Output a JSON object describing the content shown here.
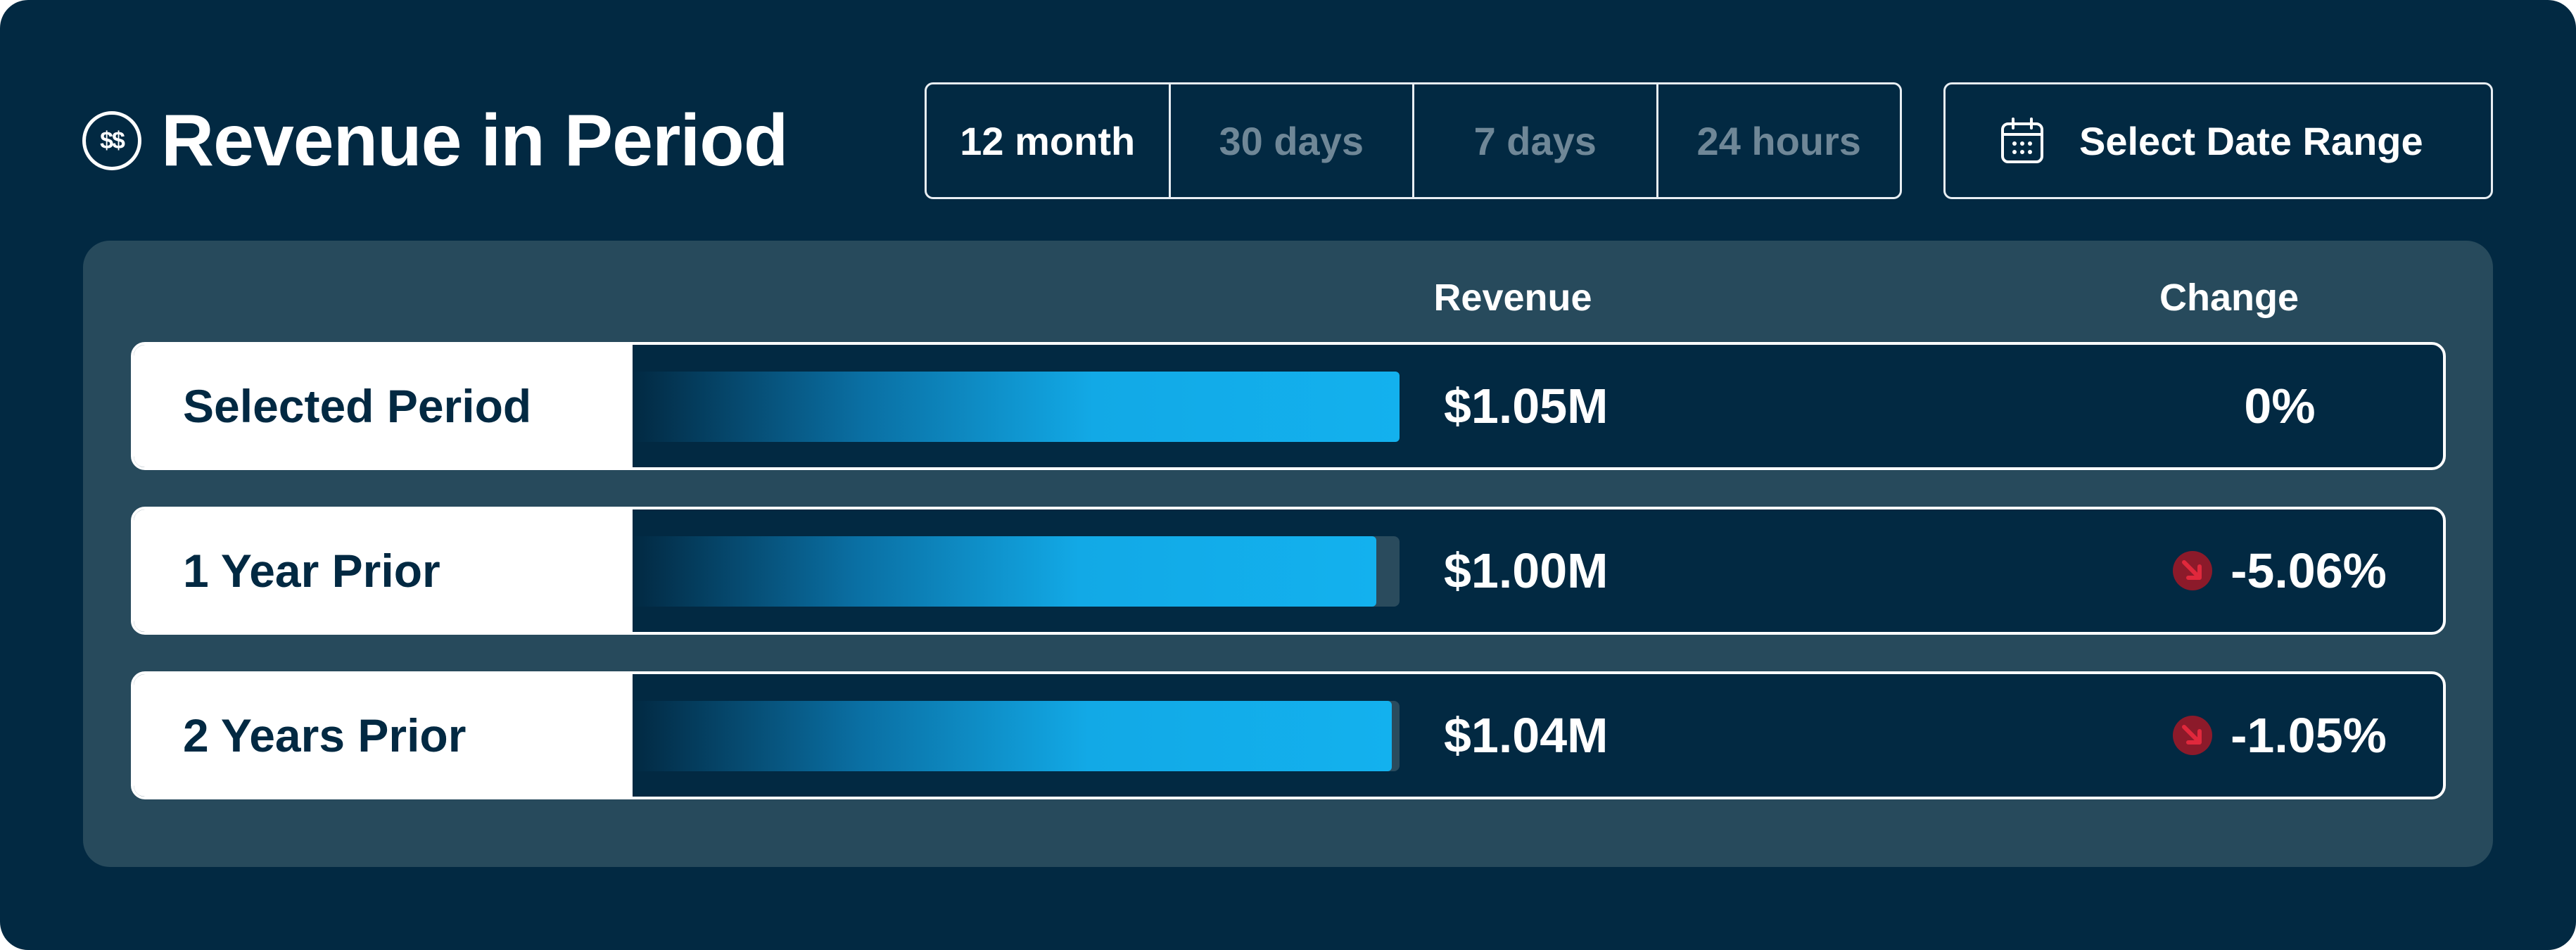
{
  "header": {
    "title": "Revenue in Period",
    "title_icon": "$$",
    "title_icon_name": "dollar-circle-icon"
  },
  "period_tabs": [
    {
      "label": "12 month",
      "active": true
    },
    {
      "label": "30 days",
      "active": false
    },
    {
      "label": "7 days",
      "active": false
    },
    {
      "label": "24 hours",
      "active": false
    }
  ],
  "date_range": {
    "label": "Select Date Range",
    "icon": "calendar-icon"
  },
  "table": {
    "columns": {
      "revenue": "Revenue",
      "change": "Change"
    },
    "rows": [
      {
        "label": "Selected Period",
        "value": "$1.05M",
        "bar_fraction": 1.0,
        "change": "0%",
        "trend": "none"
      },
      {
        "label": "1 Year Prior",
        "value": "$1.00M",
        "bar_fraction": 0.97,
        "change": "-5.06%",
        "trend": "down"
      },
      {
        "label": "2 Years Prior",
        "value": "$1.04M",
        "bar_fraction": 0.99,
        "change": "-1.05%",
        "trend": "down"
      }
    ]
  },
  "colors": {
    "background": "#022942",
    "panel": "#274a5c",
    "bar": "#13b1ee",
    "down_badge": "#8c1a2a",
    "down_arrow": "#e0283c"
  }
}
